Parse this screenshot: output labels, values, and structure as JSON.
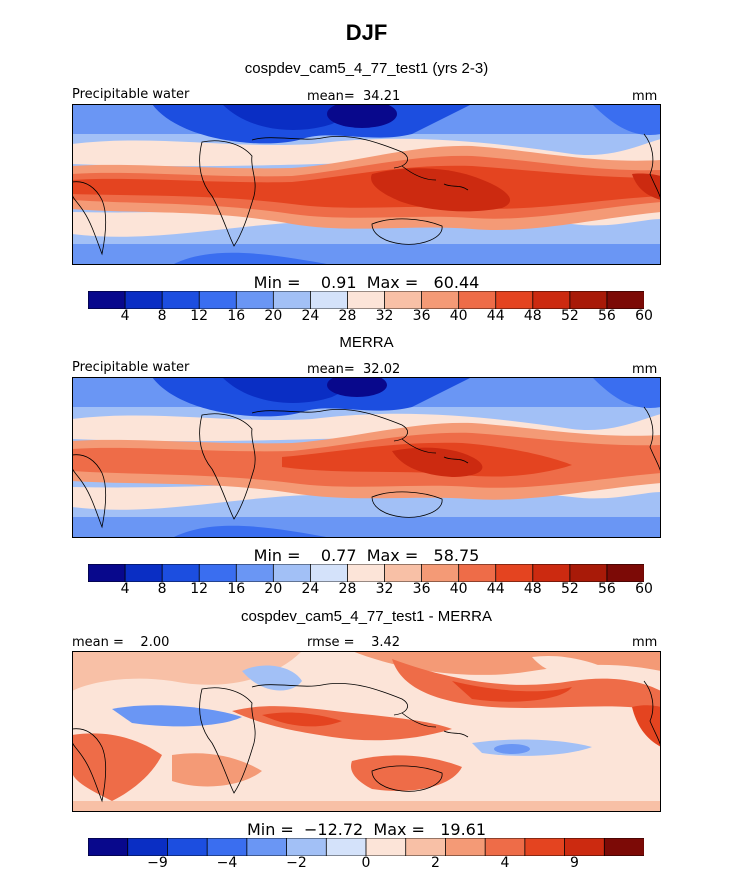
{
  "figure": {
    "title": "DJF"
  },
  "panels": [
    {
      "subtitle": "cospdev_cam5_4_77_test1 (yrs 2-3)",
      "left_label": "Precipitable water",
      "center_label": "mean=  34.21",
      "right_label": "mm",
      "min_max": "Min =    0.91  Max =   60.44",
      "colorbar": "abs"
    },
    {
      "subtitle": "MERRA",
      "left_label": "Precipitable water",
      "center_label": "mean=  32.02",
      "right_label": "mm",
      "min_max": "Min =    0.77  Max =   58.75",
      "colorbar": "abs"
    },
    {
      "subtitle": "cospdev_cam5_4_77_test1 - MERRA",
      "left_label": "mean =    2.00",
      "center_label": "rmse =    3.42",
      "right_label": "mm",
      "min_max": "Min =  −12.72  Max =   19.61",
      "colorbar": "diff"
    }
  ],
  "colorbars": {
    "abs": {
      "colors": [
        "#08088c",
        "#0a2ec4",
        "#1c4ee0",
        "#3a6ef0",
        "#6a96f4",
        "#a2c0f6",
        "#d4e2fa",
        "#fce4d8",
        "#f8c0a6",
        "#f49a76",
        "#ee6c48",
        "#e44420",
        "#cc2a10",
        "#a81a08",
        "#7c0a06"
      ],
      "tick_labels": [
        "4",
        "8",
        "12",
        "16",
        "20",
        "24",
        "28",
        "32",
        "36",
        "40",
        "44",
        "48",
        "52",
        "56",
        "60"
      ]
    },
    "diff": {
      "colors": [
        "#08088c",
        "#0a2ec4",
        "#1c4ee0",
        "#3a6ef0",
        "#6a96f4",
        "#a2c0f6",
        "#d4e2fa",
        "#fce4d8",
        "#f8c0a6",
        "#f49a76",
        "#ee6c48",
        "#e44420",
        "#cc2a10",
        "#7c0a06"
      ],
      "tick_labels": [
        "−9",
        "−4",
        "−2",
        "0",
        "2",
        "4",
        "9"
      ]
    }
  },
  "chart_data": [
    {
      "type": "heatmap",
      "title": "cospdev_cam5_4_77_test1 (yrs 2-3)",
      "variable": "Precipitable water",
      "units": "mm",
      "mean": 34.21,
      "min": 0.91,
      "max": 60.44,
      "contour_levels": [
        4,
        8,
        12,
        16,
        20,
        24,
        28,
        32,
        36,
        40,
        44,
        48,
        52,
        56,
        60
      ]
    },
    {
      "type": "heatmap",
      "title": "MERRA",
      "variable": "Precipitable water",
      "units": "mm",
      "mean": 32.02,
      "min": 0.77,
      "max": 58.75,
      "contour_levels": [
        4,
        8,
        12,
        16,
        20,
        24,
        28,
        32,
        36,
        40,
        44,
        48,
        52,
        56,
        60
      ]
    },
    {
      "type": "heatmap",
      "title": "cospdev_cam5_4_77_test1 - MERRA",
      "units": "mm",
      "mean": 2.0,
      "rmse": 3.42,
      "min": -12.72,
      "max": 19.61,
      "labeled_levels": [
        -9,
        -4,
        -2,
        0,
        2,
        4,
        9
      ]
    }
  ]
}
